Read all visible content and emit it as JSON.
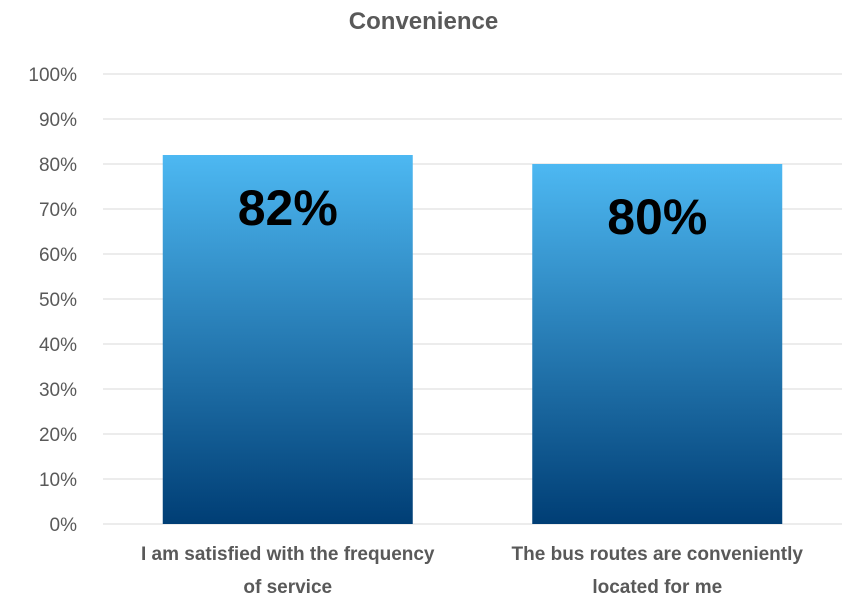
{
  "chart_data": {
    "type": "bar",
    "title": "Convenience",
    "categories": [
      [
        "I am satisfied with the frequency",
        "of service"
      ],
      [
        "The bus routes are conveniently",
        "located for me"
      ]
    ],
    "values": [
      82,
      80
    ],
    "value_labels": [
      "82%",
      "80%"
    ],
    "ylim": [
      0,
      100
    ],
    "yticks": [
      0,
      10,
      20,
      30,
      40,
      50,
      60,
      70,
      80,
      90,
      100
    ],
    "ytick_labels": [
      "0%",
      "10%",
      "20%",
      "30%",
      "40%",
      "50%",
      "60%",
      "70%",
      "80%",
      "90%",
      "100%"
    ],
    "xlabel": "",
    "ylabel": "",
    "grid": true,
    "legend": "none",
    "colors": {
      "bar_top": "#4db8f2",
      "bar_bottom": "#003e75",
      "grid": "#d9d9d9",
      "text": "#595959",
      "label": "#000000"
    }
  }
}
